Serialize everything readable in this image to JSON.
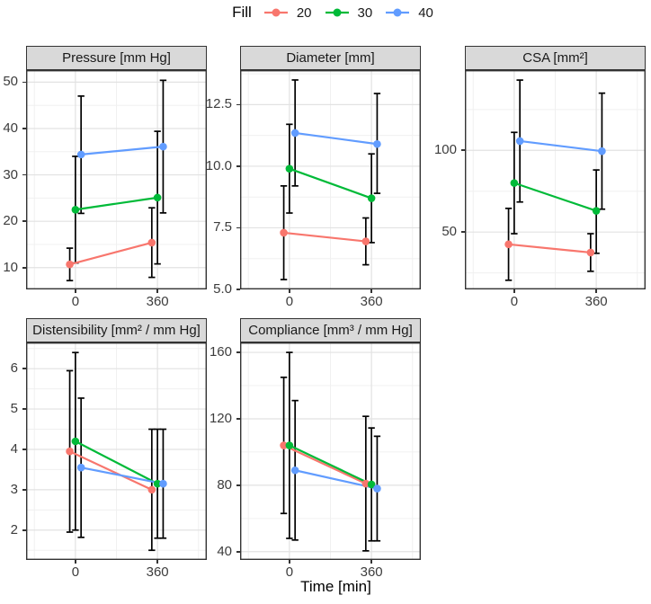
{
  "legend": {
    "title": "Fill",
    "items": [
      {
        "label": "20",
        "color": "#F8766D"
      },
      {
        "label": "30",
        "color": "#00BA38"
      },
      {
        "label": "40",
        "color": "#619CFF"
      }
    ]
  },
  "chart_data": {
    "type": "line",
    "subtype": "point-line-with-error-bars",
    "facets": true,
    "xlabel": "Time [min]",
    "x": [
      0,
      360
    ],
    "x_tick_labels": [
      "0",
      "360"
    ],
    "series_variable": "Fill",
    "series_names": [
      "20",
      "30",
      "40"
    ],
    "series_colors": [
      "#F8766D",
      "#00BA38",
      "#619CFF"
    ],
    "error_bar_color": "#000000",
    "grid": "on",
    "legend_position": "top",
    "panels": [
      {
        "title": "Pressure [mm Hg]",
        "ylim": [
          5.3,
          52.6
        ],
        "yticks": [
          10,
          20,
          30,
          40,
          50
        ],
        "ytick_labels": [
          "10",
          "20",
          "30",
          "40",
          "50"
        ],
        "yminor": [
          15,
          25,
          35,
          45
        ],
        "series": [
          {
            "name": "20",
            "y": [
              10.7,
              15.4
            ],
            "lo": [
              7.2,
              7.9
            ],
            "hi": [
              14.2,
              22.9
            ]
          },
          {
            "name": "30",
            "y": [
              22.5,
              25.1
            ],
            "lo": [
              11.0,
              10.8
            ],
            "hi": [
              34.0,
              39.4
            ]
          },
          {
            "name": "40",
            "y": [
              34.4,
              36.1
            ],
            "lo": [
              21.7,
              21.8
            ],
            "hi": [
              47.0,
              50.4
            ]
          }
        ]
      },
      {
        "title": "Diameter [mm]",
        "ylim": [
          5.0,
          13.9
        ],
        "yticks": [
          5.0,
          7.5,
          10.0,
          12.5
        ],
        "ytick_labels": [
          "5.0",
          "7.5",
          "10.0",
          "12.5"
        ],
        "yminor": [
          6.25,
          8.75,
          11.25,
          13.75
        ],
        "series": [
          {
            "name": "20",
            "y": [
              7.3,
              6.95
            ],
            "lo": [
              5.4,
              6.0
            ],
            "hi": [
              9.2,
              7.9
            ]
          },
          {
            "name": "30",
            "y": [
              9.9,
              8.7
            ],
            "lo": [
              8.1,
              6.9
            ],
            "hi": [
              11.7,
              10.5
            ]
          },
          {
            "name": "40",
            "y": [
              11.35,
              10.9
            ],
            "lo": [
              9.2,
              8.9
            ],
            "hi": [
              13.5,
              12.95
            ]
          }
        ]
      },
      {
        "title": "CSA [mm²]",
        "ylim": [
          14.9,
          149.1
        ],
        "yticks": [
          50,
          100
        ],
        "ytick_labels": [
          "50",
          "100"
        ],
        "yminor": [
          25,
          75,
          125
        ],
        "series": [
          {
            "name": "20",
            "y": [
              42.5,
              37.5
            ],
            "lo": [
              20.5,
              26.0
            ],
            "hi": [
              64.5,
              49.0
            ]
          },
          {
            "name": "30",
            "y": [
              80.0,
              63.0
            ],
            "lo": [
              49.0,
              37.0
            ],
            "hi": [
              111.0,
              88.0
            ]
          },
          {
            "name": "40",
            "y": [
              105.7,
              99.5
            ],
            "lo": [
              68.4,
              64.0
            ],
            "hi": [
              143.0,
              135.0
            ]
          }
        ]
      },
      {
        "title": "Distensibility [mm² / mm Hg]",
        "ylim": [
          1.26,
          6.65
        ],
        "yticks": [
          2,
          3,
          4,
          5,
          6
        ],
        "ytick_labels": [
          "2",
          "3",
          "4",
          "5",
          "6"
        ],
        "yminor": [
          1.5,
          2.5,
          3.5,
          4.5,
          5.5,
          6.5
        ],
        "series": [
          {
            "name": "20",
            "y": [
              3.95,
              3.0
            ],
            "lo": [
              1.95,
              1.5
            ],
            "hi": [
              5.95,
              4.5
            ]
          },
          {
            "name": "30",
            "y": [
              4.2,
              3.15
            ],
            "lo": [
              2.0,
              1.8
            ],
            "hi": [
              6.4,
              4.5
            ]
          },
          {
            "name": "40",
            "y": [
              3.55,
              3.15
            ],
            "lo": [
              1.82,
              1.8
            ],
            "hi": [
              5.27,
              4.5
            ]
          }
        ]
      },
      {
        "title": "Compliance [mm³ / mm Hg]",
        "ylim": [
          35,
          166
        ],
        "yticks": [
          40,
          80,
          120,
          160
        ],
        "ytick_labels": [
          "40",
          "80",
          "120",
          "160"
        ],
        "yminor": [
          60,
          100,
          140
        ],
        "series": [
          {
            "name": "20",
            "y": [
              104.0,
              81.0
            ],
            "lo": [
              63.0,
              40.5
            ],
            "hi": [
              145.0,
              121.5
            ]
          },
          {
            "name": "30",
            "y": [
              104.0,
              80.5
            ],
            "lo": [
              48.0,
              46.5
            ],
            "hi": [
              160.0,
              114.5
            ]
          },
          {
            "name": "40",
            "y": [
              89.0,
              78.0
            ],
            "lo": [
              47.0,
              46.5
            ],
            "hi": [
              131.0,
              109.5
            ]
          }
        ]
      }
    ]
  }
}
